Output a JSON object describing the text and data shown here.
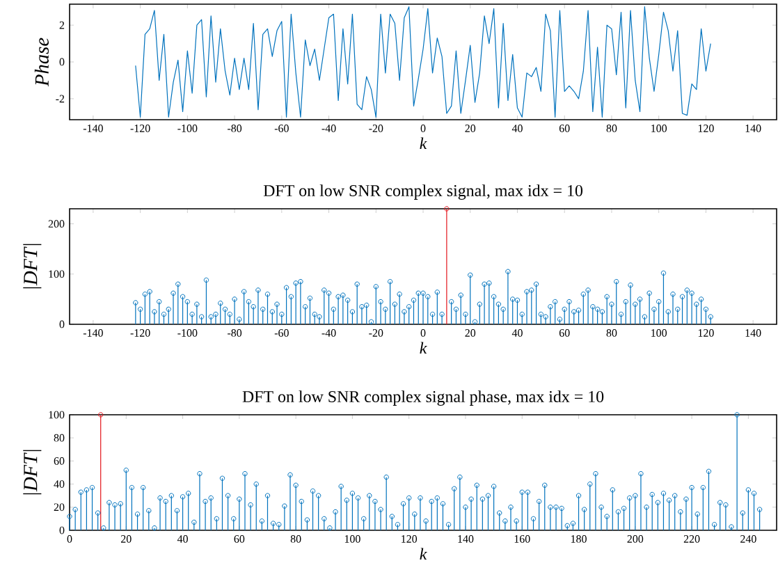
{
  "chart_data": [
    {
      "type": "line",
      "xlabel": "k",
      "ylabel": "Phase",
      "color": "#0072bd",
      "marker": "none",
      "line_style": "solid",
      "xlim": [
        -150,
        150
      ],
      "xticks": [
        -140,
        -120,
        -100,
        -80,
        -60,
        -40,
        -20,
        0,
        20,
        40,
        60,
        80,
        100,
        120,
        140
      ],
      "ylim": [
        -3.14,
        3.14
      ],
      "yticks": [
        -2,
        0,
        2
      ],
      "x": [
        -122,
        -120,
        -118,
        -116,
        -114,
        -112,
        -110,
        -108,
        -106,
        -104,
        -102,
        -100,
        -98,
        -96,
        -94,
        -92,
        -90,
        -88,
        -86,
        -84,
        -82,
        -80,
        -78,
        -76,
        -74,
        -72,
        -70,
        -68,
        -66,
        -64,
        -62,
        -60,
        -58,
        -56,
        -54,
        -52,
        -50,
        -48,
        -46,
        -44,
        -42,
        -40,
        -38,
        -36,
        -34,
        -32,
        -30,
        -28,
        -26,
        -24,
        -22,
        -20,
        -18,
        -16,
        -14,
        -12,
        -10,
        -8,
        -6,
        -4,
        -2,
        0,
        2,
        4,
        6,
        8,
        10,
        12,
        14,
        16,
        18,
        20,
        22,
        24,
        26,
        28,
        30,
        32,
        34,
        36,
        38,
        40,
        42,
        44,
        46,
        48,
        50,
        52,
        54,
        56,
        58,
        60,
        62,
        64,
        66,
        68,
        70,
        72,
        74,
        76,
        78,
        80,
        82,
        84,
        86,
        88,
        90,
        92,
        94,
        96,
        98,
        100,
        102,
        104,
        106,
        108,
        110,
        112,
        114,
        116,
        118,
        120,
        122
      ],
      "values": [
        -0.2,
        -3.0,
        1.5,
        1.8,
        2.8,
        -1.0,
        1.5,
        -3.0,
        -1.1,
        0.1,
        -2.7,
        0.6,
        -1.7,
        2.0,
        2.3,
        -1.9,
        2.5,
        -1.1,
        1.8,
        -0.5,
        -1.8,
        0.2,
        -1.5,
        0.2,
        -1.5,
        2.1,
        -2.6,
        1.5,
        1.8,
        0.3,
        1.7,
        2.2,
        -3.0,
        2.6,
        -0.6,
        -3.0,
        1.2,
        -0.2,
        0.7,
        -1.0,
        0.7,
        2.4,
        2.6,
        -2.1,
        1.8,
        -1.2,
        2.6,
        -2.3,
        -2.6,
        -0.8,
        -1.5,
        -3.0,
        2.6,
        -0.6,
        2.6,
        2.1,
        -1.0,
        2.4,
        3.0,
        -2.4,
        -0.9,
        0.7,
        2.9,
        -0.6,
        1.3,
        0.3,
        -2.8,
        -2.4,
        0.6,
        -2.8,
        -1.0,
        0.9,
        -2.2,
        -0.6,
        2.5,
        1.0,
        2.9,
        -2.5,
        2.1,
        -2.1,
        0.4,
        -2.5,
        -3.0,
        -0.6,
        -0.8,
        -0.3,
        -1.6,
        2.6,
        1.7,
        -3.0,
        2.8,
        -1.6,
        -1.3,
        -1.6,
        -2.0,
        -0.5,
        2.8,
        -2.7,
        0.8,
        -3.0,
        2.0,
        1.8,
        -0.7,
        2.7,
        -2.5,
        2.8,
        -1.0,
        -2.7,
        3.0,
        0.2,
        -1.6,
        0.4,
        2.7,
        1.7,
        -0.5,
        1.7,
        -2.8,
        -2.9,
        -1.2,
        -1.5,
        1.8,
        -0.5,
        1.0
      ]
    },
    {
      "type": "lollipop",
      "title": "DFT on low SNR complex signal, max idx = 10",
      "xlabel": "k",
      "ylabel": "|DFT|",
      "marker": "circle",
      "xlim": [
        -150,
        150
      ],
      "xticks": [
        -140,
        -120,
        -100,
        -80,
        -60,
        -40,
        -20,
        0,
        20,
        40,
        60,
        80,
        100,
        120,
        140
      ],
      "ylim": [
        0,
        230
      ],
      "yticks": [
        0,
        100,
        200
      ],
      "series": [
        {
          "color": "#0072bd",
          "x": [
            -122,
            -120,
            -118,
            -116,
            -114,
            -112,
            -110,
            -108,
            -106,
            -104,
            -102,
            -100,
            -98,
            -96,
            -94,
            -92,
            -90,
            -88,
            -86,
            -84,
            -82,
            -80,
            -78,
            -76,
            -74,
            -72,
            -70,
            -68,
            -66,
            -64,
            -62,
            -60,
            -58,
            -56,
            -54,
            -52,
            -50,
            -48,
            -46,
            -44,
            -42,
            -40,
            -38,
            -36,
            -34,
            -32,
            -30,
            -28,
            -26,
            -24,
            -22,
            -20,
            -18,
            -16,
            -14,
            -12,
            -10,
            -8,
            -6,
            -4,
            -2,
            0,
            2,
            4,
            6,
            8,
            12,
            14,
            16,
            18,
            20,
            22,
            24,
            26,
            28,
            30,
            32,
            34,
            36,
            38,
            40,
            42,
            44,
            46,
            48,
            50,
            52,
            54,
            56,
            58,
            60,
            62,
            64,
            66,
            68,
            70,
            72,
            74,
            76,
            78,
            80,
            82,
            84,
            86,
            88,
            90,
            92,
            94,
            96,
            98,
            100,
            102,
            104,
            106,
            108,
            110,
            112,
            114,
            116,
            118,
            120,
            122
          ],
          "values": [
            43,
            30,
            60,
            65,
            25,
            45,
            20,
            30,
            62,
            80,
            55,
            45,
            20,
            40,
            15,
            88,
            15,
            20,
            42,
            30,
            20,
            50,
            10,
            65,
            45,
            35,
            68,
            30,
            60,
            25,
            40,
            20,
            73,
            55,
            82,
            85,
            35,
            52,
            20,
            15,
            68,
            62,
            30,
            55,
            58,
            48,
            25,
            80,
            35,
            38,
            5,
            75,
            45,
            30,
            85,
            40,
            60,
            25,
            35,
            48,
            62,
            62,
            55,
            20,
            64,
            20,
            45,
            30,
            58,
            20,
            98,
            5,
            40,
            80,
            82,
            55,
            40,
            30,
            105,
            50,
            48,
            20,
            65,
            68,
            80,
            20,
            15,
            35,
            45,
            10,
            30,
            45,
            25,
            28,
            60,
            68,
            35,
            30,
            25,
            55,
            40,
            85,
            20,
            45,
            78,
            40,
            50,
            15,
            62,
            30,
            45,
            102,
            25,
            60,
            30,
            55,
            68,
            62,
            40,
            50,
            30,
            15
          ]
        },
        {
          "color": "#e3141b",
          "x": [
            10
          ],
          "values": [
            230
          ]
        }
      ]
    },
    {
      "type": "lollipop",
      "title": "DFT on low SNR complex signal phase, max idx = 10",
      "xlabel": "k",
      "ylabel": "|DFT|",
      "marker": "circle",
      "xlim": [
        0,
        250
      ],
      "xticks": [
        0,
        20,
        40,
        60,
        80,
        100,
        120,
        140,
        160,
        180,
        200,
        220,
        240
      ],
      "ylim": [
        0,
        100
      ],
      "yticks": [
        0,
        20,
        40,
        60,
        80,
        100
      ],
      "series": [
        {
          "color": "#0072bd",
          "x": [
            0,
            2,
            4,
            6,
            8,
            10,
            12,
            14,
            16,
            18,
            20,
            22,
            24,
            26,
            28,
            30,
            32,
            34,
            36,
            38,
            40,
            42,
            44,
            46,
            48,
            50,
            52,
            54,
            56,
            58,
            60,
            62,
            64,
            66,
            68,
            70,
            72,
            74,
            76,
            78,
            80,
            82,
            84,
            86,
            88,
            90,
            92,
            94,
            96,
            98,
            100,
            102,
            104,
            106,
            108,
            110,
            112,
            114,
            116,
            118,
            120,
            122,
            124,
            126,
            128,
            130,
            132,
            134,
            136,
            138,
            140,
            142,
            144,
            146,
            148,
            150,
            152,
            154,
            156,
            158,
            160,
            162,
            164,
            166,
            168,
            170,
            172,
            174,
            176,
            178,
            180,
            182,
            184,
            186,
            188,
            190,
            192,
            194,
            196,
            198,
            200,
            202,
            204,
            206,
            208,
            210,
            212,
            214,
            216,
            218,
            220,
            222,
            224,
            226,
            228,
            230,
            232,
            234,
            236,
            238,
            240,
            242,
            244
          ],
          "values": [
            12,
            18,
            33,
            35,
            37,
            15,
            2,
            24,
            22,
            23,
            52,
            37,
            14,
            37,
            17,
            2,
            28,
            25,
            30,
            17,
            29,
            32,
            7,
            49,
            25,
            28,
            10,
            45,
            30,
            10,
            27,
            49,
            22,
            40,
            8,
            30,
            6,
            5,
            21,
            48,
            39,
            25,
            9,
            34,
            30,
            10,
            2,
            16,
            38,
            26,
            32,
            28,
            10,
            30,
            25,
            18,
            46,
            12,
            5,
            23,
            28,
            14,
            28,
            8,
            25,
            28,
            23,
            5,
            36,
            46,
            20,
            27,
            39,
            27,
            30,
            38,
            15,
            8,
            20,
            8,
            33,
            33,
            10,
            25,
            39,
            20,
            20,
            19,
            4,
            6,
            30,
            18,
            40,
            49,
            20,
            12,
            35,
            16,
            19,
            28,
            30,
            49,
            20,
            31,
            24,
            32,
            26,
            30,
            16,
            27,
            37,
            14,
            37,
            51,
            5,
            24,
            22,
            3,
            100,
            15,
            35,
            32,
            18
          ]
        },
        {
          "color": "#e3141b",
          "x": [
            11
          ],
          "values": [
            100
          ]
        }
      ]
    }
  ]
}
